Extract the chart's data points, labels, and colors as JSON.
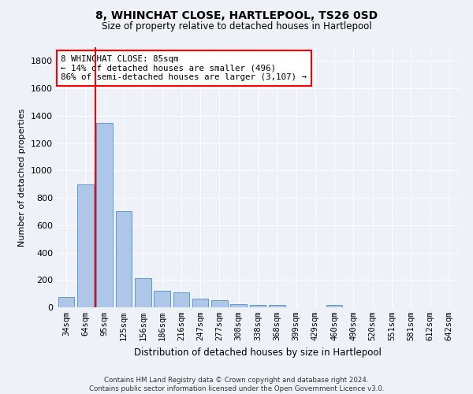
{
  "title": "8, WHINCHAT CLOSE, HARTLEPOOL, TS26 0SD",
  "subtitle": "Size of property relative to detached houses in Hartlepool",
  "xlabel": "Distribution of detached houses by size in Hartlepool",
  "ylabel": "Number of detached properties",
  "categories": [
    "34sqm",
    "64sqm",
    "95sqm",
    "125sqm",
    "156sqm",
    "186sqm",
    "216sqm",
    "247sqm",
    "277sqm",
    "308sqm",
    "338sqm",
    "368sqm",
    "399sqm",
    "429sqm",
    "460sqm",
    "490sqm",
    "520sqm",
    "551sqm",
    "581sqm",
    "612sqm",
    "642sqm"
  ],
  "values": [
    75,
    900,
    1350,
    700,
    215,
    120,
    110,
    65,
    50,
    25,
    20,
    20,
    0,
    0,
    15,
    0,
    0,
    0,
    0,
    0,
    0
  ],
  "bar_color": "#aec6e8",
  "bar_edge_color": "#5b9bd5",
  "vline_color": "red",
  "vline_x": 1.5,
  "annotation_text": "8 WHINCHAT CLOSE: 85sqm\n← 14% of detached houses are smaller (496)\n86% of semi-detached houses are larger (3,107) →",
  "annotation_box_color": "white",
  "annotation_box_edge_color": "red",
  "ylim": [
    0,
    1900
  ],
  "yticks": [
    0,
    200,
    400,
    600,
    800,
    1000,
    1200,
    1400,
    1600,
    1800
  ],
  "footer": "Contains HM Land Registry data © Crown copyright and database right 2024.\nContains public sector information licensed under the Open Government Licence v3.0.",
  "bg_color": "#eef2f8",
  "plot_bg_color": "#eef2f8"
}
